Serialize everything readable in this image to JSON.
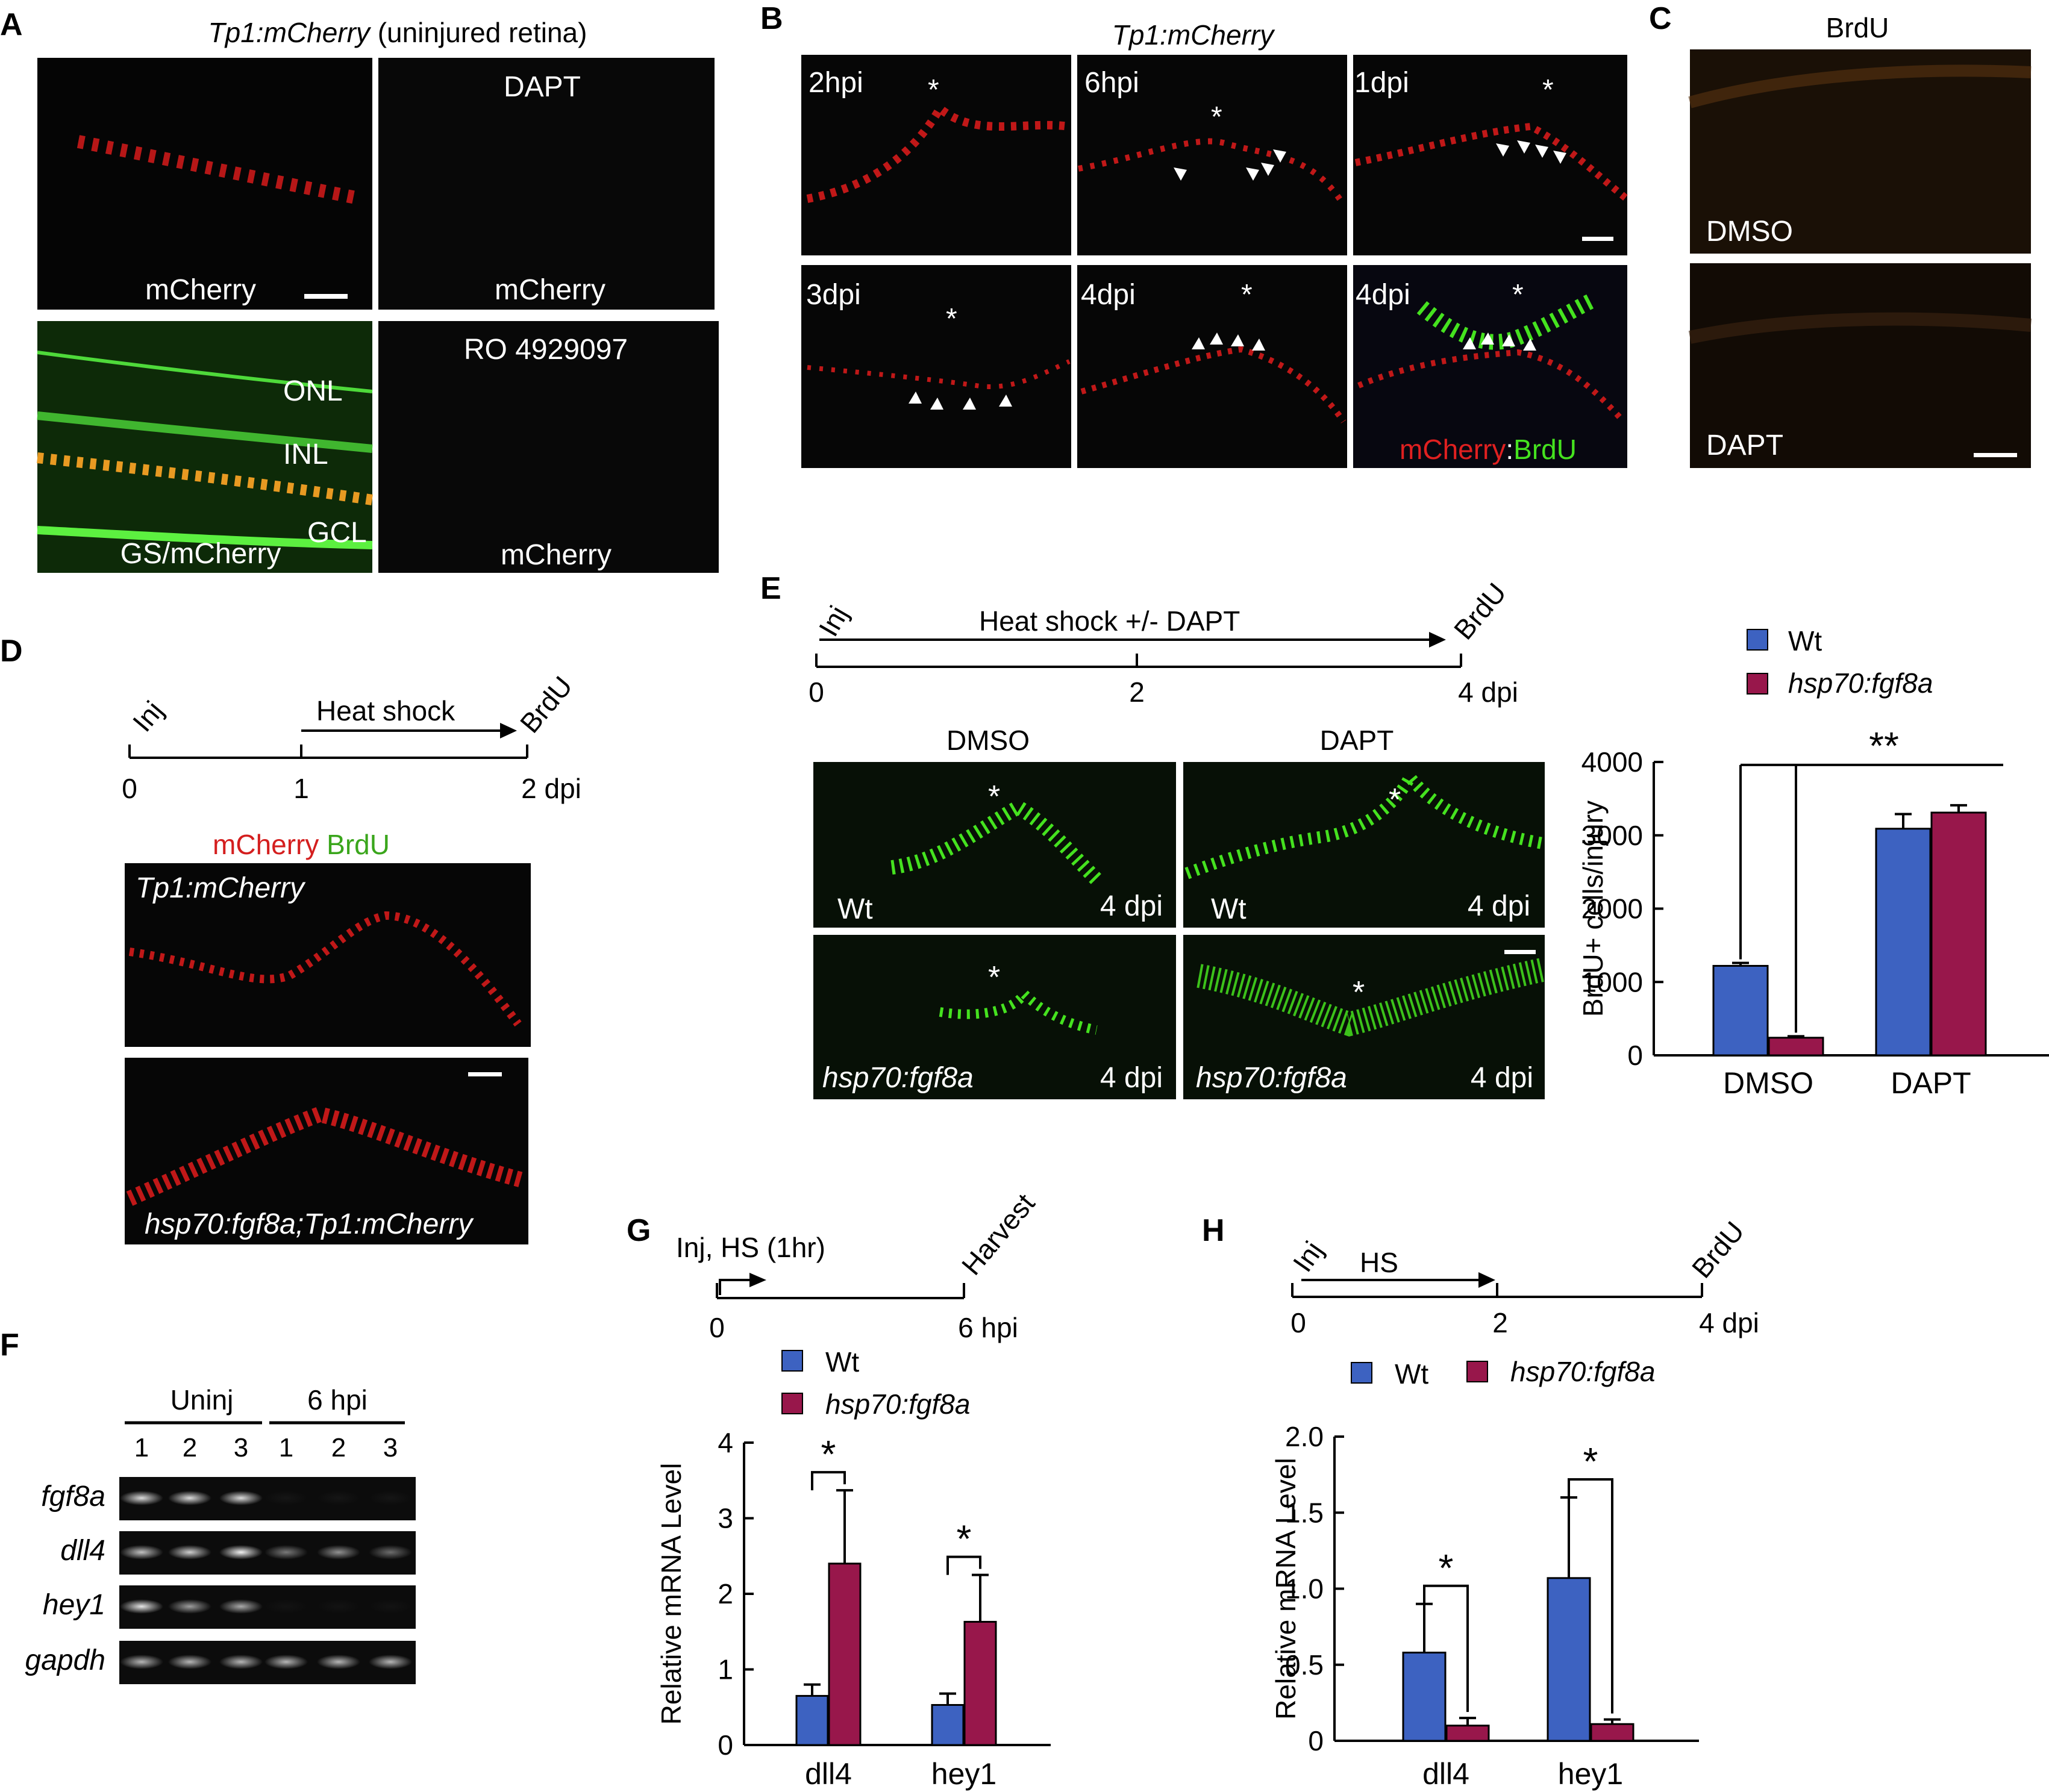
{
  "panel_letters": [
    "A",
    "B",
    "C",
    "D",
    "E",
    "F",
    "G",
    "H"
  ],
  "colors": {
    "wt": "#3d62c1",
    "fgf": "#98174b",
    "red": "#e02020",
    "green": "#45e21f",
    "dark": "#050505"
  },
  "A": {
    "title_italic": "Tp1:mCherry",
    "title_rest": " (uninjured retina)",
    "tiles": [
      {
        "top": "",
        "bottom": "mCherry"
      },
      {
        "top": "DAPT",
        "bottom": "mCherry"
      },
      {
        "top": "",
        "bottom": "GS/mCherry"
      },
      {
        "top": "RO 4929097",
        "bottom": "mCherry"
      }
    ],
    "layers": [
      "ONL",
      "INL",
      "GCL"
    ]
  },
  "B": {
    "title": "Tp1:mCherry",
    "tiles": [
      "2hpi",
      "6hpi",
      "1dpi",
      "3dpi",
      "4dpi",
      "4dpi"
    ],
    "legend_red": "mCherry",
    "legend_sep": ":",
    "legend_green": "BrdU",
    "asterisk": "*"
  },
  "C": {
    "title": "BrdU",
    "tiles": [
      "DMSO",
      "DAPT"
    ]
  },
  "D": {
    "timeline": {
      "start": "Inj",
      "arrow": "Heat shock",
      "end": "BrdU",
      "ticks": [
        "0",
        "1",
        "2 dpi"
      ]
    },
    "legend_red": "mCherry",
    "legend_green": "BrdU",
    "tiles": [
      "Tp1:mCherry",
      "hsp70:fgf8a;Tp1:mCherry"
    ]
  },
  "E": {
    "timeline": {
      "start": "Inj",
      "arrow": "Heat shock +/- DAPT",
      "end": "BrdU",
      "ticks": [
        "0",
        "2",
        "4 dpi"
      ]
    },
    "col_headers": [
      "DMSO",
      "DAPT"
    ],
    "tiles": [
      {
        "genotype": "Wt",
        "time": "4 dpi"
      },
      {
        "genotype": "Wt",
        "time": "4 dpi"
      },
      {
        "genotype": "hsp70:fgf8a",
        "time": "4 dpi"
      },
      {
        "genotype": "hsp70:fgf8a",
        "time": "4 dpi"
      }
    ]
  },
  "F": {
    "groups": [
      "Uninj",
      "6 hpi"
    ],
    "lanes": [
      "1",
      "2",
      "3",
      "1",
      "2",
      "3"
    ],
    "genes": [
      "fgf8a",
      "dll4",
      "hey1",
      "gapdh"
    ],
    "band_intensity": [
      [
        0.85,
        0.85,
        0.85,
        0.04,
        0.04,
        0.04
      ],
      [
        0.75,
        0.8,
        0.95,
        0.45,
        0.55,
        0.4
      ],
      [
        0.9,
        0.6,
        0.65,
        0.03,
        0.03,
        0.03
      ],
      [
        0.7,
        0.7,
        0.7,
        0.7,
        0.7,
        0.7
      ]
    ]
  },
  "G": {
    "timeline": {
      "start": "Inj, HS (1hr)",
      "end": "Harvest",
      "ticks": [
        "0",
        "6 hpi"
      ]
    }
  },
  "H": {
    "timeline": {
      "start": "Inj",
      "arrow": "HS",
      "end": "BrdU",
      "ticks": [
        "0",
        "2",
        "4 dpi"
      ]
    }
  },
  "chart_data": [
    {
      "panel": "E",
      "type": "bar",
      "categories": [
        "DMSO",
        "DAPT"
      ],
      "series": [
        {
          "name": "Wt",
          "values": [
            1220,
            3090
          ],
          "errors": [
            40,
            200
          ]
        },
        {
          "name": "hsp70:fgf8a",
          "values": [
            240,
            3310
          ],
          "errors": [
            20,
            100
          ]
        }
      ],
      "ylabel": "BrdU+ cells/injury",
      "ylim": [
        0,
        4000
      ],
      "yticks": [
        0,
        1000,
        2000,
        3000,
        4000
      ],
      "legend_placement": "top",
      "significance": "**"
    },
    {
      "panel": "G",
      "type": "bar",
      "categories": [
        "dll4",
        "hey1"
      ],
      "series": [
        {
          "name": "Wt",
          "values": [
            0.65,
            0.53
          ],
          "errors": [
            0.15,
            0.15
          ]
        },
        {
          "name": "hsp70:fgf8a",
          "values": [
            2.4,
            1.63
          ],
          "errors": [
            0.97,
            0.62
          ]
        }
      ],
      "ylabel": "Relative mRNA Level",
      "ylim": [
        0,
        4
      ],
      "yticks": [
        0,
        1,
        2,
        3,
        4
      ],
      "legend_placement": "top",
      "significance": [
        "*",
        "*"
      ]
    },
    {
      "panel": "H",
      "type": "bar",
      "categories": [
        "dll4",
        "hey1"
      ],
      "series": [
        {
          "name": "Wt",
          "values": [
            0.58,
            1.07
          ],
          "errors": [
            0.32,
            0.53
          ]
        },
        {
          "name": "hsp70:fgf8a",
          "values": [
            0.1,
            0.11
          ],
          "errors": [
            0.05,
            0.03
          ]
        }
      ],
      "ylabel": "Relative mRNA Level",
      "ylim": [
        0,
        2.0
      ],
      "yticks": [
        "0",
        "0.5",
        "1.0",
        "1.5",
        "2.0"
      ],
      "legend_placement": "top",
      "significance": [
        "*",
        "*"
      ]
    }
  ]
}
